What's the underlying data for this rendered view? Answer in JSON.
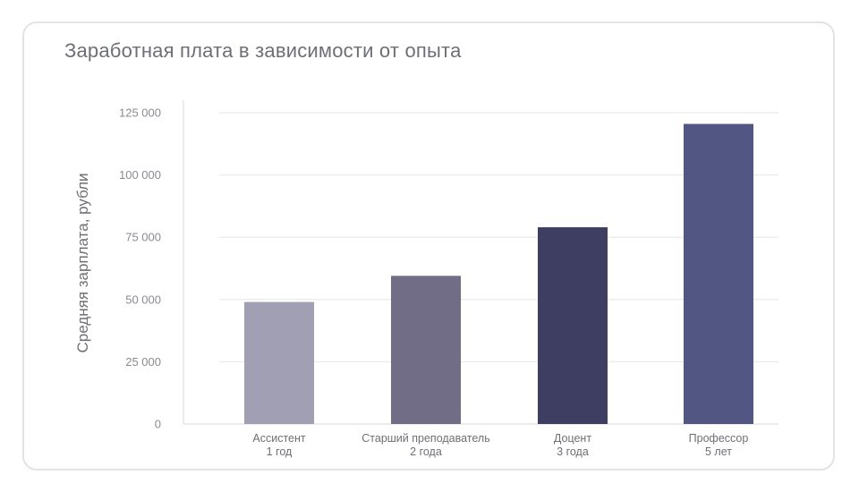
{
  "chart_data": {
    "type": "bar",
    "title": "Заработная плата в зависимости от опыта",
    "xlabel": "",
    "ylabel": "Средняя зарплата, рубли",
    "ylim": [
      0,
      125000
    ],
    "yticks": [
      0,
      25000,
      50000,
      75000,
      100000,
      125000
    ],
    "ytick_labels": [
      "0",
      "25 000",
      "50 000",
      "75 000",
      "100 000",
      "125 000"
    ],
    "grid": true,
    "categories": [
      {
        "line1": "Ассистент",
        "line2": "1 год"
      },
      {
        "line1": "Старший преподаватель",
        "line2": "2 года"
      },
      {
        "line1": "Доцент",
        "line2": "3 года"
      },
      {
        "line1": "Профессор",
        "line2": "5 лет"
      }
    ],
    "values": [
      49000,
      59500,
      79000,
      120500
    ],
    "colors": [
      "#a19fb3",
      "#716d87",
      "#3e3e62",
      "#525683"
    ]
  }
}
